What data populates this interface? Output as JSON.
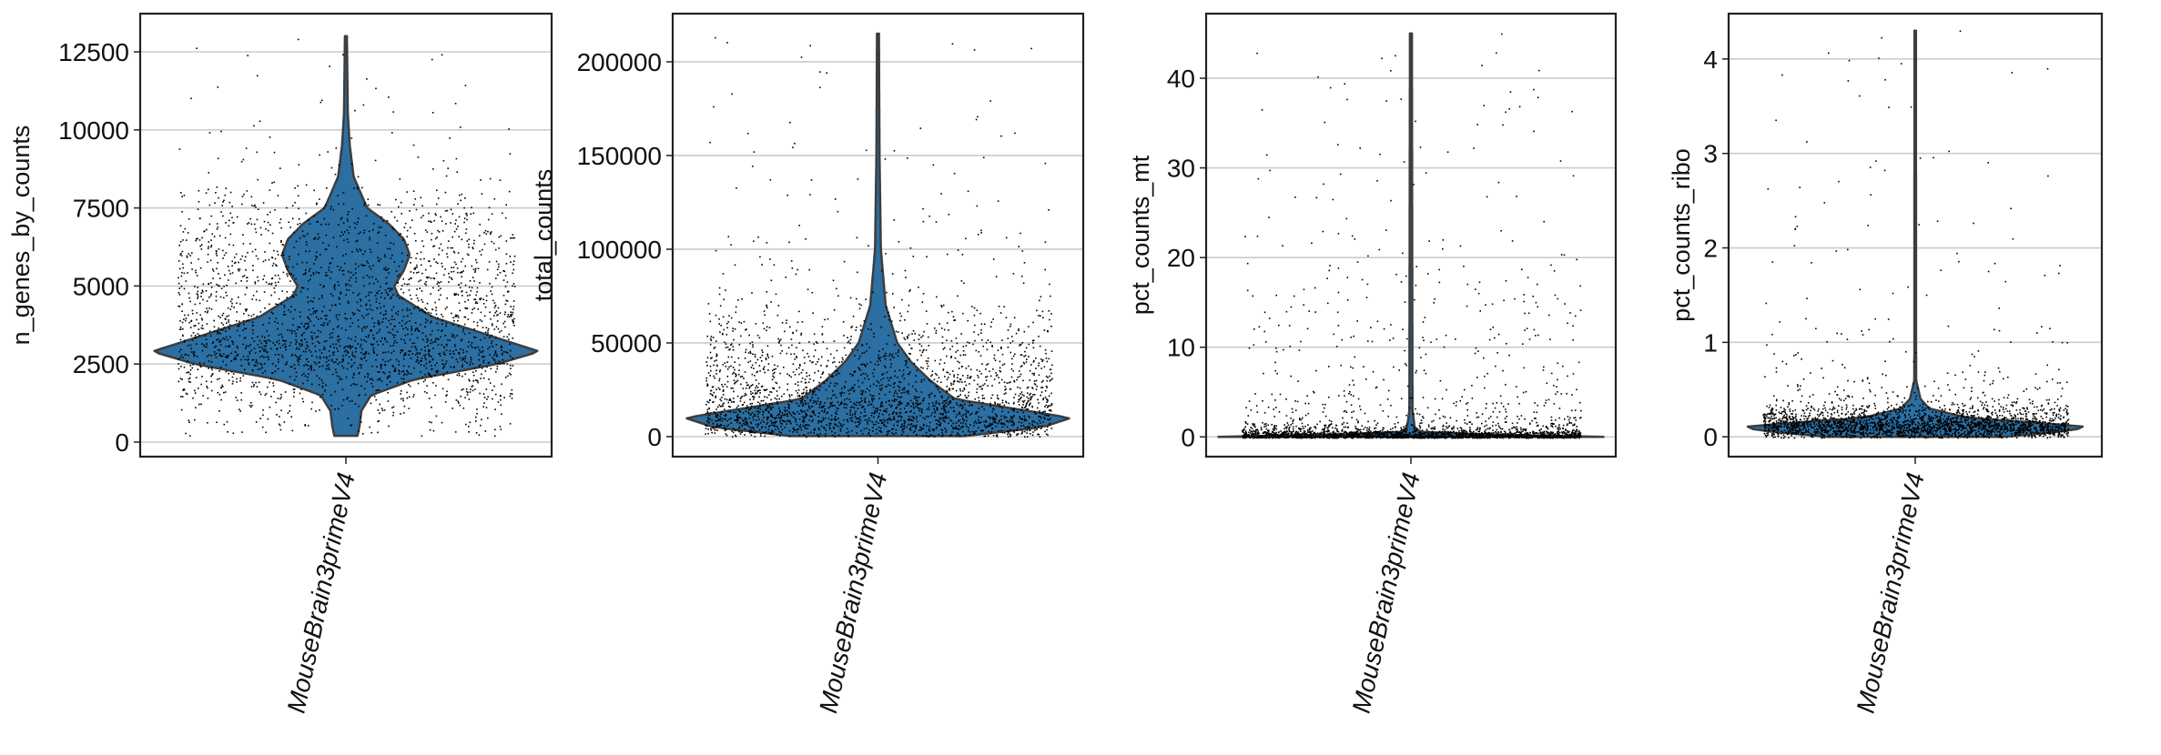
{
  "chart_data": [
    {
      "type": "violin",
      "category": "MouseBrain3primeV4",
      "ylabel": "n_genes_by_counts",
      "yticks": [
        0,
        2500,
        5000,
        7500,
        10000,
        12500
      ],
      "ytick_labels": [
        "0",
        "2500",
        "5000",
        "7500",
        "10000",
        "12500"
      ],
      "ylim": [
        -466,
        13724
      ],
      "grid": "horizontal",
      "violin_profile": [
        [
          200,
          0.06
        ],
        [
          500,
          0.07
        ],
        [
          1000,
          0.08
        ],
        [
          1500,
          0.13
        ],
        [
          2000,
          0.35
        ],
        [
          2500,
          0.78
        ],
        [
          2900,
          1.0
        ],
        [
          3300,
          0.8
        ],
        [
          4000,
          0.45
        ],
        [
          4700,
          0.27
        ],
        [
          5000,
          0.25
        ],
        [
          5500,
          0.3
        ],
        [
          6000,
          0.33
        ],
        [
          6500,
          0.3
        ],
        [
          7000,
          0.22
        ],
        [
          7500,
          0.11
        ],
        [
          8500,
          0.04
        ],
        [
          9500,
          0.02
        ],
        [
          10500,
          0.01
        ],
        [
          13000,
          0.005
        ]
      ],
      "strip_profile": [
        [
          200,
          0.15
        ],
        [
          1000,
          0.2
        ],
        [
          2000,
          0.5
        ],
        [
          2500,
          0.85
        ],
        [
          2900,
          1.0
        ],
        [
          3500,
          0.8
        ],
        [
          4500,
          0.55
        ],
        [
          5500,
          0.5
        ],
        [
          6500,
          0.4
        ],
        [
          7500,
          0.25
        ],
        [
          8500,
          0.05
        ],
        [
          10000,
          0.02
        ],
        [
          13000,
          0.01
        ]
      ],
      "strip_spread": 0.87
    },
    {
      "type": "violin",
      "category": "MouseBrain3primeV4",
      "ylabel": "total_counts",
      "yticks": [
        0,
        50000,
        100000,
        150000,
        200000
      ],
      "ytick_labels": [
        "0",
        "50000",
        "100000",
        "150000",
        "200000"
      ],
      "ylim": [
        -10680,
        225700
      ],
      "grid": "horizontal",
      "violin_profile": [
        [
          300,
          0.45
        ],
        [
          5000,
          0.85
        ],
        [
          10000,
          1.0
        ],
        [
          15000,
          0.7
        ],
        [
          20000,
          0.4
        ],
        [
          30000,
          0.27
        ],
        [
          40000,
          0.17
        ],
        [
          50000,
          0.1
        ],
        [
          70000,
          0.04
        ],
        [
          100000,
          0.015
        ],
        [
          150000,
          0.008
        ],
        [
          215000,
          0.005
        ]
      ],
      "strip_profile": [
        [
          300,
          0.6
        ],
        [
          5000,
          0.9
        ],
        [
          10000,
          1.0
        ],
        [
          15000,
          0.8
        ],
        [
          25000,
          0.5
        ],
        [
          40000,
          0.3
        ],
        [
          55000,
          0.15
        ],
        [
          80000,
          0.03
        ],
        [
          120000,
          0.01
        ],
        [
          215000,
          0.004
        ]
      ],
      "strip_spread": 0.9
    },
    {
      "type": "violin",
      "category": "MouseBrain3primeV4",
      "ylabel": "pct_counts_mt",
      "yticks": [
        0,
        10,
        20,
        30,
        40
      ],
      "ytick_labels": [
        "0",
        "10",
        "20",
        "30",
        "40"
      ],
      "ylim": [
        -2.2,
        47.2
      ],
      "grid": "horizontal",
      "violin_profile": [
        [
          0,
          1.0
        ],
        [
          0.2,
          0.5
        ],
        [
          0.5,
          0.06
        ],
        [
          1,
          0.02
        ],
        [
          3,
          0.008
        ],
        [
          45,
          0.005
        ]
      ],
      "strip_profile": [
        [
          0,
          1.0
        ],
        [
          0.3,
          0.6
        ],
        [
          0.8,
          0.1
        ],
        [
          2,
          0.02
        ],
        [
          5,
          0.005
        ],
        [
          25,
          0.001
        ],
        [
          45,
          0.0005
        ]
      ],
      "strip_spread": 0.88
    },
    {
      "type": "violin",
      "category": "MouseBrain3primeV4",
      "ylabel": "pct_counts_ribo",
      "yticks": [
        0,
        1,
        2,
        3,
        4
      ],
      "ytick_labels": [
        "0",
        "1",
        "2",
        "3",
        "4"
      ],
      "ylim": [
        -0.21,
        4.48
      ],
      "grid": "horizontal",
      "violin_profile": [
        [
          0,
          0.5
        ],
        [
          0.05,
          0.8
        ],
        [
          0.1,
          1.0
        ],
        [
          0.15,
          0.7
        ],
        [
          0.2,
          0.3
        ],
        [
          0.3,
          0.08
        ],
        [
          0.4,
          0.03
        ],
        [
          0.6,
          0.005
        ],
        [
          4.3,
          0.004
        ]
      ],
      "strip_profile": [
        [
          0,
          0.4
        ],
        [
          0.05,
          0.8
        ],
        [
          0.1,
          1.0
        ],
        [
          0.15,
          0.8
        ],
        [
          0.25,
          0.3
        ],
        [
          0.4,
          0.05
        ],
        [
          0.7,
          0.01
        ],
        [
          1.5,
          0.003
        ],
        [
          4.3,
          0.0008
        ]
      ],
      "strip_spread": 0.87
    }
  ],
  "colors": {
    "violin_fill": "#2b6fa3",
    "violin_edge": "#3d3d3d",
    "points": "#000000",
    "grid": "#cccccc",
    "spine": "#222222"
  }
}
